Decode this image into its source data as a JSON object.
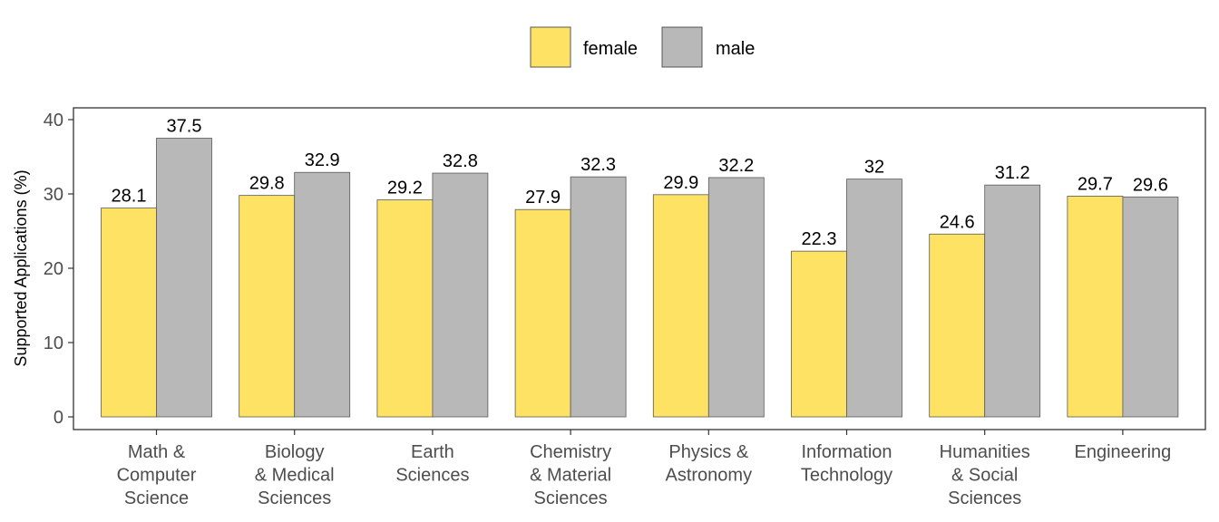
{
  "chart_data": {
    "type": "bar",
    "title": "",
    "xlabel": "",
    "ylabel": "Supported Applications (%)",
    "ylim": [
      0,
      40
    ],
    "yticks": [
      0,
      10,
      20,
      30,
      40
    ],
    "grid": false,
    "legend_position": "top",
    "categories": [
      [
        "Math &",
        "Computer",
        "Science"
      ],
      [
        "Biology",
        "& Medical",
        "Sciences"
      ],
      [
        "Earth",
        "Sciences"
      ],
      [
        "Chemistry",
        "& Material",
        "Sciences"
      ],
      [
        "Physics &",
        "Astronomy"
      ],
      [
        "Information",
        "Technology"
      ],
      [
        "Humanities",
        "& Social",
        "Sciences"
      ],
      [
        "Engineering"
      ]
    ],
    "series": [
      {
        "name": "female",
        "color": "#fde263",
        "values": [
          28.1,
          29.8,
          29.2,
          27.9,
          29.9,
          22.3,
          24.6,
          29.7
        ]
      },
      {
        "name": "male",
        "color": "#b8b8b8",
        "values": [
          37.5,
          32.9,
          32.8,
          32.3,
          32.2,
          32,
          31.2,
          29.6
        ]
      }
    ]
  }
}
